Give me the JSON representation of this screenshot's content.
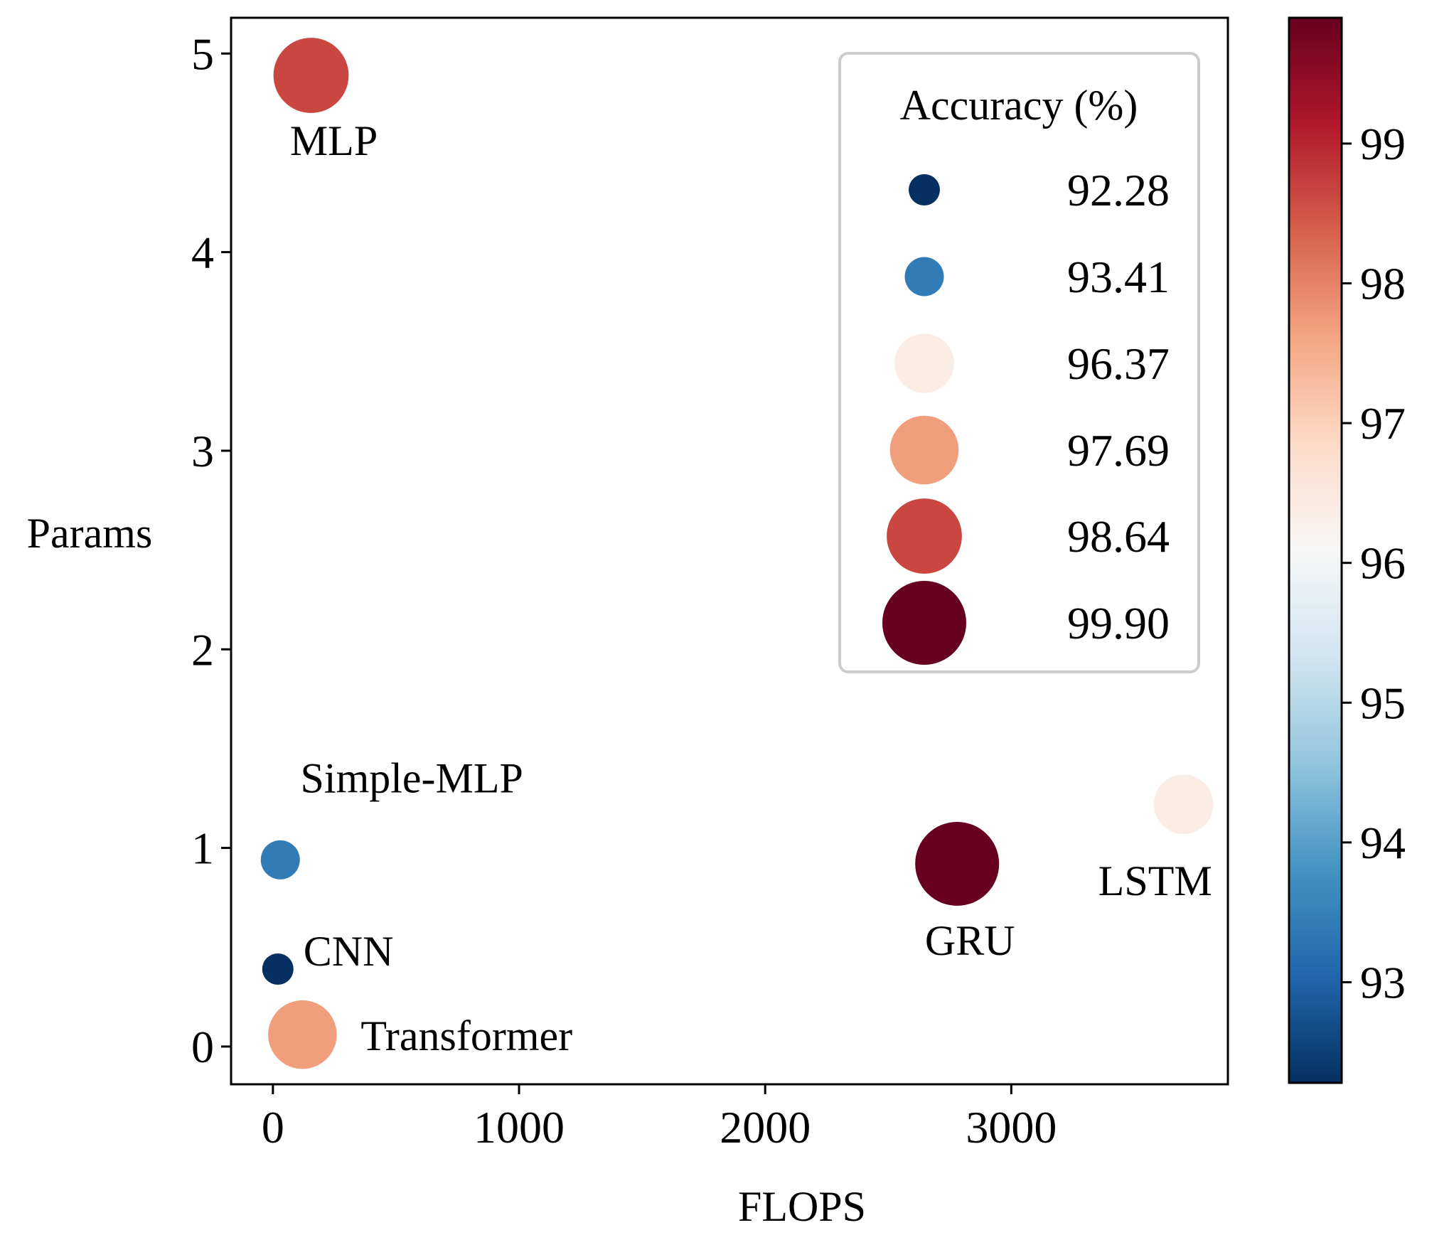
{
  "chart_data": {
    "type": "scatter",
    "xlabel": "FLOPS",
    "ylabel": "Params",
    "xlim": [
      -170,
      3880
    ],
    "ylim": [
      -0.19,
      5.18
    ],
    "xticks": [
      0,
      1000,
      2000,
      3000
    ],
    "yticks": [
      0,
      1,
      2,
      3,
      4,
      5
    ],
    "points": [
      {
        "label": "MLP",
        "flops": 155,
        "params": 4.89,
        "accuracy": 98.64
      },
      {
        "label": "Simple-MLP",
        "flops": 30,
        "params": 0.94,
        "accuracy": 93.41
      },
      {
        "label": "CNN",
        "flops": 20,
        "params": 0.39,
        "accuracy": 92.28
      },
      {
        "label": "Transformer",
        "flops": 120,
        "params": 0.06,
        "accuracy": 97.69
      },
      {
        "label": "GRU",
        "flops": 2780,
        "params": 0.92,
        "accuracy": 99.9
      },
      {
        "label": "LSTM",
        "flops": 3700,
        "params": 1.22,
        "accuracy": 96.37
      }
    ],
    "size_encoding": "accuracy",
    "color_encoding": "accuracy",
    "legend": {
      "title": "Accuracy (%)",
      "placement": "top-right",
      "entries": [
        "92.28",
        "93.41",
        "96.37",
        "97.69",
        "98.64",
        "99.90"
      ]
    },
    "colorbar": {
      "colormap": "RdBu_r",
      "range": [
        92.28,
        99.9
      ],
      "ticks": [
        93,
        94,
        95,
        96,
        97,
        98,
        99
      ]
    },
    "grid": false
  }
}
